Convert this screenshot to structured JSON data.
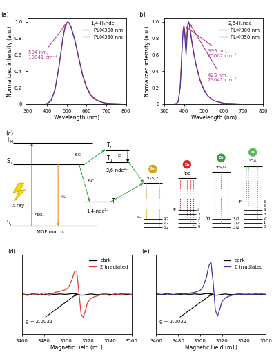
{
  "chart_data": [
    {
      "type": "line",
      "panel": "(a)",
      "legend_title": "1,4-H₂ndc",
      "legend": "upper right",
      "x_label": "Wavelength (nm)",
      "y_label": "Normalized intensity (a.u.)",
      "xlim": [
        300,
        800
      ],
      "xticks": [
        300,
        400,
        500,
        600,
        700,
        800
      ],
      "ylim": [
        0,
        1.05
      ],
      "yticks": [
        0,
        0.2,
        0.4,
        0.6,
        0.8,
        {
          "value": 1,
          "label": "1.0"
        }
      ],
      "x": [
        300,
        320,
        340,
        360,
        380,
        400,
        420,
        440,
        460,
        480,
        490,
        500,
        504,
        510,
        520,
        540,
        560,
        580,
        600,
        620,
        640,
        660,
        680,
        700,
        740,
        800
      ],
      "series": [
        {
          "name": "PL@300 nm",
          "color": "#e8392f",
          "values": [
            0,
            0,
            0,
            0,
            0,
            0.005,
            0.04,
            0.17,
            0.45,
            0.8,
            0.93,
            0.99,
            1.0,
            0.99,
            0.95,
            0.79,
            0.57,
            0.36,
            0.21,
            0.12,
            0.07,
            0.04,
            0.02,
            0.01,
            0.005,
            0
          ]
        },
        {
          "name": "PL@350 nm",
          "color": "#4a3aa8",
          "values": [
            0,
            0,
            0,
            0,
            0,
            0.005,
            0.045,
            0.18,
            0.46,
            0.81,
            0.93,
            0.99,
            1.0,
            0.99,
            0.95,
            0.78,
            0.56,
            0.35,
            0.2,
            0.11,
            0.06,
            0.035,
            0.02,
            0.01,
            0.005,
            0
          ]
        }
      ],
      "annotations": [
        {
          "text": "504 nm,\n19841 cm⁻¹",
          "x": 504,
          "y": 1.0,
          "color": "#b5338a"
        }
      ]
    },
    {
      "type": "line",
      "panel": "(b)",
      "legend_title": "2,6-H₂ndc",
      "legend": "upper right",
      "x_label": "Wavelength (nm)",
      "y_label": "Normalized intensity (a.u.)",
      "xlim": [
        300,
        800
      ],
      "xticks": [
        300,
        400,
        500,
        600,
        700,
        800
      ],
      "ylim": [
        0,
        1.05
      ],
      "yticks": [
        0,
        0.2,
        0.4,
        0.6,
        0.8,
        {
          "value": 1,
          "label": "1.0"
        }
      ],
      "x": [
        300,
        340,
        360,
        370,
        380,
        385,
        390,
        395,
        399,
        403,
        407,
        410,
        413,
        417,
        420,
        423,
        427,
        432,
        440,
        450,
        460,
        480,
        500,
        520,
        550,
        600,
        700,
        800
      ],
      "series": [
        {
          "name": "PL@300 nm",
          "color": "#e8392f",
          "values": [
            0,
            0,
            0.005,
            0.03,
            0.22,
            0.45,
            0.72,
            0.9,
            0.95,
            0.88,
            0.78,
            0.75,
            0.8,
            0.93,
            0.98,
            1.0,
            0.97,
            0.89,
            0.75,
            0.61,
            0.49,
            0.3,
            0.18,
            0.1,
            0.04,
            0.01,
            0,
            0
          ]
        },
        {
          "name": "PL@350 nm",
          "color": "#4a3aa8",
          "values": [
            0,
            0,
            0.005,
            0.03,
            0.2,
            0.42,
            0.7,
            0.9,
            0.96,
            0.85,
            0.68,
            0.6,
            0.72,
            0.92,
            0.98,
            1.0,
            0.96,
            0.88,
            0.74,
            0.6,
            0.48,
            0.29,
            0.17,
            0.1,
            0.04,
            0.01,
            0,
            0
          ]
        }
      ],
      "annotations": [
        {
          "text": "399 nm,\n25062 cm⁻¹",
          "x": 399,
          "y": 0.96,
          "color": "#b5338a"
        },
        {
          "text": "423 nm,\n23641 cm⁻¹",
          "x": 423,
          "y": 1.0,
          "color": "#b5338a"
        }
      ]
    },
    {
      "type": "line",
      "panel": "(d)",
      "legend": "upper right",
      "tick_labels": "x",
      "x_label": "Magnetic Field (mT)",
      "xlim": [
        3460,
        3560
      ],
      "xticks": [
        3460,
        3480,
        3500,
        3520,
        3540,
        3560
      ],
      "ylim": [
        -1,
        1
      ],
      "x": [
        3460,
        3465,
        3470,
        3475,
        3480,
        3485,
        3490,
        3495,
        3500,
        3503,
        3506,
        3508,
        3510,
        3512,
        3514,
        3516,
        3518,
        3520,
        3523,
        3526,
        3530,
        3535,
        3540,
        3545,
        3550,
        3555,
        3560
      ],
      "series": [
        {
          "name": "dark",
          "color": "#000000",
          "values": [
            0.01,
            -0.01,
            0.01,
            0,
            -0.01,
            0.01,
            0,
            0.01,
            0,
            0.01,
            0.02,
            0.02,
            0.01,
            -0.01,
            -0.02,
            -0.02,
            -0.01,
            0,
            0.01,
            0,
            -0.01,
            0.01,
            0,
            -0.01,
            0.01,
            0,
            0
          ]
        },
        {
          "name": "2 irradiated",
          "color": "#e8392f",
          "values": [
            0.02,
            -0.03,
            0.03,
            -0.02,
            0.04,
            -0.03,
            0.05,
            0.08,
            0.12,
            0.2,
            0.4,
            0.58,
            0.6,
            0.05,
            -0.5,
            -0.58,
            -0.4,
            -0.2,
            -0.1,
            -0.06,
            -0.03,
            0.02,
            -0.03,
            0.02,
            -0.02,
            0.03,
            -0.01
          ]
        }
      ],
      "annotations": [
        {
          "text": "g = 2.0031",
          "x": 3512,
          "y": 0.05,
          "color": "#000000"
        }
      ]
    },
    {
      "type": "line",
      "panel": "(e)",
      "legend": "upper right",
      "tick_labels": "x",
      "x_label": "Magnetic Field (mT)",
      "xlim": [
        3460,
        3560
      ],
      "xticks": [
        3460,
        3480,
        3500,
        3520,
        3540,
        3560
      ],
      "ylim": [
        -1,
        1
      ],
      "x": [
        3460,
        3465,
        3470,
        3475,
        3480,
        3485,
        3490,
        3495,
        3500,
        3503,
        3506,
        3508,
        3510,
        3512,
        3514,
        3516,
        3518,
        3520,
        3523,
        3526,
        3530,
        3535,
        3540,
        3545,
        3550,
        3555,
        3560
      ],
      "series": [
        {
          "name": "dark",
          "color": "#000000",
          "values": [
            0.01,
            -0.01,
            0.01,
            0,
            -0.01,
            0.01,
            0,
            0.01,
            0,
            0.01,
            0.02,
            0.02,
            0.01,
            -0.01,
            -0.02,
            -0.02,
            -0.01,
            0,
            0.01,
            0,
            -0.01,
            0.01,
            0,
            -0.01,
            0.01,
            0,
            0
          ]
        },
        {
          "name": "6 irradiated",
          "color": "#3b2fa0",
          "values": [
            0.01,
            0,
            0.02,
            -0.01,
            0.02,
            0.01,
            0.03,
            0.05,
            0.1,
            0.2,
            0.45,
            0.72,
            0.82,
            0.3,
            -0.4,
            -0.55,
            -0.38,
            -0.18,
            -0.09,
            -0.05,
            -0.02,
            0.01,
            0,
            0.01,
            -0.01,
            0.01,
            0
          ]
        }
      ],
      "annotations": [
        {
          "text": "g = 2.0032",
          "x": 3513,
          "y": 0.05,
          "color": "#000000"
        }
      ]
    }
  ],
  "diagram": {
    "panel": "(c)",
    "matrix": {
      "top": {
        "text": "I",
        "sub": "H"
      },
      "s1": {
        "text": "S",
        "sub": "1"
      },
      "s0": {
        "text": "S",
        "sub": "0"
      },
      "ti": {
        "text": "T",
        "sub": "i"
      },
      "t1_26": {
        "text": "T",
        "sub": "1"
      },
      "t1_14": {
        "text": "T",
        "sub": "1"
      },
      "ligand_14": "1,4-ndc²⁻",
      "ligand_26": "2,6-ndc²⁻",
      "isc_labels": [
        "ISC",
        "ISC"
      ],
      "ic": "IC",
      "xray": "X-ray",
      "fl": "FL",
      "abs": "Abs.",
      "matrix_label": "MOF matrix"
    },
    "ions": [
      {
        "name": "Sm",
        "color": "#d4a017",
        "excited": "⁴G5/2",
        "ground_term": "⁶H",
        "ground": [
          "9/2",
          "7/2",
          "5/2"
        ]
      },
      {
        "name": "Eu",
        "color": "#d62728",
        "excited": "⁵D0",
        "ground_term": "⁷F",
        "ground": [
          "4",
          "3",
          "2",
          "1",
          "0"
        ]
      },
      {
        "name": "Dy",
        "color": "#3c9a3c",
        "excited": "⁴F9/2",
        "ground_term": "⁶H",
        "ground": [
          "15/2",
          "13/2",
          "11/2"
        ]
      },
      {
        "name": "Tb",
        "color": "#5cb85c",
        "excited": "⁵D4",
        "ground_term": "⁷F",
        "ground": [
          "6",
          "5",
          "4",
          "3",
          "2",
          "1",
          "0"
        ]
      }
    ]
  }
}
